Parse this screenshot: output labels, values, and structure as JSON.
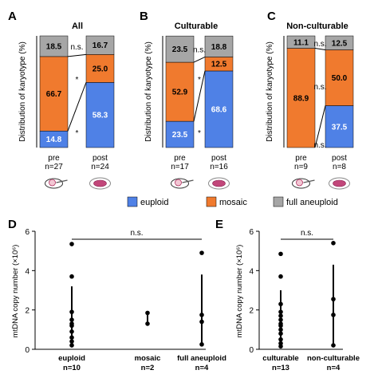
{
  "panel_letters": [
    "A",
    "B",
    "C",
    "D",
    "E"
  ],
  "top_ylabel": "Distribution of karyotype (%)",
  "bottom_ylabel": "mtDNA copy number (×10⁶)",
  "legend": [
    {
      "label": "euploid",
      "color": "#4f81e6"
    },
    {
      "label": "mosaic",
      "color": "#f07a2e"
    },
    {
      "label": "full aneuploid",
      "color": "#a6a6a6"
    }
  ],
  "chart_data": [
    {
      "type": "bar",
      "stacked": true,
      "title": "All",
      "ylabel": "Distribution of karyotype (%)",
      "ylim": [
        0,
        100
      ],
      "categories": [
        "pre",
        "post"
      ],
      "category_counts": [
        "n=27",
        "n=24"
      ],
      "series": [
        {
          "name": "euploid",
          "values": [
            14.8,
            58.3
          ]
        },
        {
          "name": "mosaic",
          "values": [
            66.7,
            25.0
          ]
        },
        {
          "name": "full aneuploid",
          "values": [
            18.5,
            16.7
          ]
        }
      ],
      "value_labels": [
        [
          "14.8",
          "58.3"
        ],
        [
          "66.7",
          "25.0"
        ],
        [
          "18.5",
          "16.7"
        ]
      ],
      "annotations": [
        "n.s.",
        "*",
        "*"
      ]
    },
    {
      "type": "bar",
      "stacked": true,
      "title": "Culturable",
      "ylabel": "Distribution of karyotype (%)",
      "ylim": [
        0,
        100
      ],
      "categories": [
        "pre",
        "post"
      ],
      "category_counts": [
        "n=17",
        "n=16"
      ],
      "series": [
        {
          "name": "euploid",
          "values": [
            23.5,
            68.6
          ]
        },
        {
          "name": "mosaic",
          "values": [
            52.9,
            12.5
          ]
        },
        {
          "name": "full aneuploid",
          "values": [
            23.5,
            18.8
          ]
        }
      ],
      "value_labels": [
        [
          "23.5",
          "68.6"
        ],
        [
          "52.9",
          "12.5"
        ],
        [
          "23.5",
          "18.8"
        ]
      ],
      "annotations": [
        "n.s.",
        "*",
        "*"
      ]
    },
    {
      "type": "bar",
      "stacked": true,
      "title": "Non-culturable",
      "ylabel": "Distribution of karyotype (%)",
      "ylim": [
        0,
        100
      ],
      "categories": [
        "pre",
        "post"
      ],
      "category_counts": [
        "n=9",
        "n=8"
      ],
      "series": [
        {
          "name": "euploid",
          "values": [
            0,
            37.5
          ]
        },
        {
          "name": "mosaic",
          "values": [
            88.9,
            50.0
          ]
        },
        {
          "name": "full aneuploid",
          "values": [
            11.1,
            12.5
          ]
        }
      ],
      "value_labels": [
        [
          "",
          "37.5"
        ],
        [
          "88.9",
          "50.0"
        ],
        [
          "11.1",
          "12.5"
        ]
      ],
      "annotations": [
        "n.s.",
        "n.s.",
        "n.s."
      ]
    },
    {
      "type": "scatter",
      "ylabel": "mtDNA copy number (×10⁶)",
      "ylim": [
        0,
        6
      ],
      "yticks": [
        0,
        2,
        4,
        6
      ],
      "categories": [
        "euploid",
        "mosaic",
        "full aneuploid"
      ],
      "category_counts": [
        "n=10",
        "n=2",
        "n=4"
      ],
      "points": [
        [
          5.35,
          3.7,
          1.9,
          1.5,
          1.3,
          1.2,
          0.9,
          0.6,
          0.4,
          0.2
        ],
        [
          1.85,
          1.3
        ],
        [
          4.9,
          1.75,
          1.4,
          0.25
        ]
      ],
      "error_bars": [
        [
          0.2,
          3.2
        ],
        [
          1.3,
          1.85
        ],
        [
          0.3,
          3.8
        ]
      ],
      "bracket_label": "n.s."
    },
    {
      "type": "scatter",
      "ylabel": "mtDNA copy number (×10⁶)",
      "ylim": [
        0,
        6
      ],
      "yticks": [
        0,
        2,
        4,
        6
      ],
      "categories": [
        "culturable",
        "non-culturable"
      ],
      "category_counts": [
        "n=13",
        "n=4"
      ],
      "points": [
        [
          4.85,
          3.7,
          2.3,
          1.9,
          1.7,
          1.5,
          1.3,
          1.2,
          1.0,
          0.8,
          0.5,
          0.3,
          0.15
        ],
        [
          5.4,
          2.55,
          1.75,
          0.2
        ]
      ],
      "error_bars": [
        [
          0.5,
          3.0
        ],
        [
          0.3,
          4.3
        ]
      ],
      "bracket_label": "n.s."
    }
  ]
}
